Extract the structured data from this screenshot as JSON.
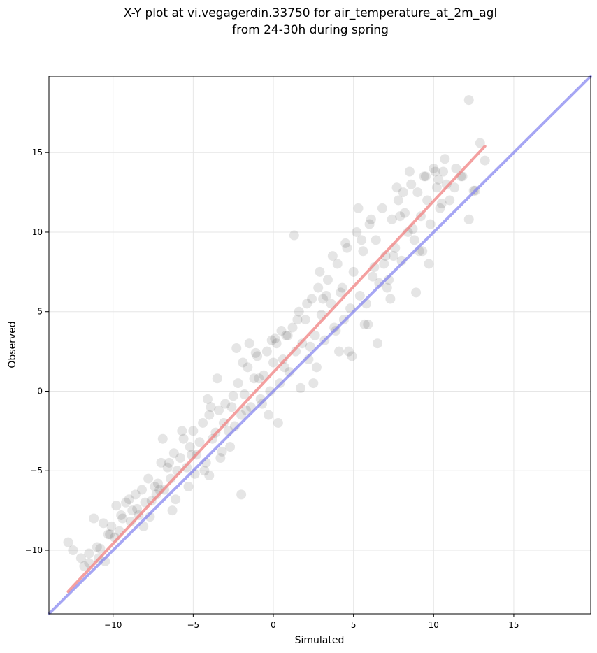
{
  "chart_data": {
    "type": "scatter",
    "title_line1": "X-Y plot at vi.vegagerdin.33750 for air_temperature_at_2m_agl",
    "title_line2": "from 24-30h during spring",
    "xlabel": "Simulated",
    "ylabel": "Observed",
    "xlim": [
      -14,
      19.8
    ],
    "ylim": [
      -14,
      19.8
    ],
    "xticks": [
      -10,
      -5,
      0,
      5,
      10,
      15
    ],
    "yticks": [
      -10,
      -5,
      0,
      5,
      10,
      15
    ],
    "xtick_labels": [
      "−10",
      "−5",
      "0",
      "5",
      "10",
      "15"
    ],
    "ytick_labels": [
      "−10",
      "−5",
      "0",
      "5",
      "10",
      "15"
    ],
    "grid": true,
    "point_color": "#000000",
    "regression_color": "#f08080",
    "identity_color": "#8080f0",
    "regression_line": {
      "x": [
        -12.8,
        13.2
      ],
      "y": [
        -12.6,
        15.4
      ]
    },
    "identity_line": {
      "x": [
        -14,
        19.8
      ],
      "y": [
        -14,
        19.8
      ]
    },
    "points": {
      "x": [
        -12.8,
        -12.5,
        -12.0,
        -11.8,
        -11.5,
        -11.2,
        -11.0,
        -10.8,
        -10.6,
        -10.5,
        -10.3,
        -10.1,
        -9.8,
        -9.6,
        -9.4,
        -9.2,
        -9.0,
        -8.8,
        -8.6,
        -8.4,
        -8.2,
        -8.0,
        -7.8,
        -7.6,
        -7.4,
        -7.2,
        -7.0,
        -6.8,
        -6.6,
        -6.4,
        -6.2,
        -6.0,
        -5.8,
        -5.6,
        -5.4,
        -5.2,
        -5.0,
        -4.8,
        -4.6,
        -4.4,
        -4.2,
        -4.0,
        -3.8,
        -3.6,
        -3.4,
        -3.2,
        -3.0,
        -2.8,
        -2.6,
        -2.4,
        -2.2,
        -2.0,
        -1.8,
        -1.6,
        -1.4,
        -1.2,
        -1.0,
        -0.8,
        -0.6,
        -0.4,
        -0.2,
        0.0,
        0.2,
        0.4,
        0.6,
        0.8,
        1.0,
        1.2,
        1.4,
        1.6,
        1.8,
        2.0,
        2.2,
        2.4,
        2.6,
        2.8,
        3.0,
        3.2,
        3.4,
        3.6,
        3.8,
        4.0,
        4.2,
        4.4,
        4.6,
        4.8,
        5.0,
        5.2,
        5.4,
        5.6,
        5.8,
        6.0,
        6.2,
        6.4,
        6.6,
        6.8,
        7.0,
        7.2,
        7.4,
        7.6,
        7.8,
        8.0,
        8.2,
        8.4,
        8.6,
        8.8,
        9.0,
        9.2,
        9.4,
        9.6,
        9.8,
        10.0,
        10.2,
        10.4,
        10.6,
        10.8,
        11.0,
        11.4,
        11.8,
        12.2,
        12.6,
        12.9,
        13.2,
        -9.5,
        -8.1,
        -7.3,
        -6.9,
        -6.1,
        -5.7,
        -4.9,
        -4.1,
        -3.3,
        -2.5,
        -1.7,
        -0.9,
        -0.1,
        0.7,
        1.5,
        2.3,
        3.1,
        3.9,
        4.7,
        5.5,
        6.3,
        7.1,
        7.9,
        8.7,
        9.5,
        10.3,
        -10.9,
        -9.9,
        -8.9,
        -7.7,
        -6.5,
        -5.3,
        -3.9,
        -2.7,
        -1.5,
        -0.3,
        0.9,
        2.1,
        3.3,
        4.5,
        5.7,
        6.9,
        8.1,
        9.3,
        10.5,
        11.7,
        -11.5,
        -10.2,
        -8.5,
        -7.1,
        -6.3,
        -5.1,
        -4.3,
        -3.1,
        -1.9,
        -0.7,
        0.5,
        1.7,
        2.9,
        4.1,
        5.3,
        6.5,
        7.7,
        8.9,
        10.1,
        11.3,
        12.5,
        -3.5,
        -2.3,
        -1.1,
        0.1,
        1.3,
        2.5,
        3.7,
        4.9,
        6.1,
        7.3,
        8.5,
        9.7,
        -4.0,
        -2.0,
        0.3,
        2.7,
        4.3,
        5.9,
        7.5,
        9.1,
        10.7,
        12.2
      ],
      "y": [
        -9.5,
        -10.0,
        -10.5,
        -11.0,
        -10.2,
        -8.0,
        -9.8,
        -9.9,
        -8.3,
        -10.7,
        -9.0,
        -8.5,
        -7.2,
        -8.8,
        -8.0,
        -7.0,
        -6.8,
        -7.5,
        -6.5,
        -7.8,
        -6.2,
        -7.0,
        -5.5,
        -6.9,
        -6.0,
        -5.8,
        -4.5,
        -6.2,
        -4.8,
        -5.5,
        -3.9,
        -5.0,
        -4.2,
        -3.0,
        -4.8,
        -3.5,
        -2.5,
        -4.0,
        -3.2,
        -2.0,
        -4.5,
        -1.5,
        -3.0,
        -2.6,
        -1.2,
        -3.8,
        -0.8,
        -2.5,
        -1.0,
        -2.2,
        0.5,
        -1.5,
        -0.2,
        1.5,
        -1.0,
        0.8,
        2.2,
        -0.5,
        1.0,
        2.5,
        0.0,
        1.8,
        3.0,
        0.5,
        2.0,
        3.5,
        1.2,
        4.0,
        2.5,
        5.0,
        3.0,
        4.5,
        2.0,
        5.8,
        3.5,
        6.5,
        4.8,
        3.2,
        7.0,
        5.5,
        4.0,
        8.0,
        6.2,
        4.5,
        9.0,
        5.2,
        7.5,
        10.0,
        6.0,
        8.8,
        5.5,
        10.5,
        7.2,
        9.5,
        6.8,
        11.5,
        8.5,
        7.0,
        10.8,
        9.0,
        12.0,
        8.2,
        11.2,
        10.0,
        13.0,
        9.5,
        12.5,
        11.0,
        13.5,
        12.0,
        10.5,
        14.0,
        12.8,
        11.5,
        13.8,
        13.0,
        12.0,
        14.0,
        13.5,
        18.3,
        12.6,
        15.6,
        14.5,
        -7.8,
        -8.5,
        -6.5,
        -3.0,
        -6.8,
        -2.5,
        -5.2,
        -0.5,
        -4.2,
        -0.3,
        -1.2,
        0.8,
        3.2,
        1.5,
        4.5,
        2.8,
        5.8,
        3.8,
        2.5,
        9.5,
        7.8,
        6.5,
        11.0,
        10.2,
        13.5,
        13.3,
        -10.5,
        -9.2,
        -8.2,
        -7.9,
        -4.5,
        -6.0,
        -1.0,
        -3.5,
        3.0,
        -1.5,
        3.5,
        5.5,
        6.0,
        9.3,
        4.2,
        8.0,
        12.5,
        8.8,
        11.8,
        13.5,
        -10.8,
        -9.0,
        -7.4,
        -6.2,
        -7.5,
        -4.0,
        -5.0,
        -2.0,
        1.8,
        -0.8,
        3.8,
        0.2,
        7.5,
        2.5,
        11.5,
        3.0,
        12.8,
        6.2,
        13.8,
        12.8,
        12.6,
        0.8,
        2.7,
        2.4,
        3.3,
        9.8,
        0.5,
        8.5,
        2.2,
        10.8,
        5.8,
        13.8,
        8.0,
        -5.3,
        -6.5,
        -2.0,
        1.5,
        6.5,
        4.2,
        8.5,
        8.8,
        14.6,
        10.8
      ]
    }
  }
}
